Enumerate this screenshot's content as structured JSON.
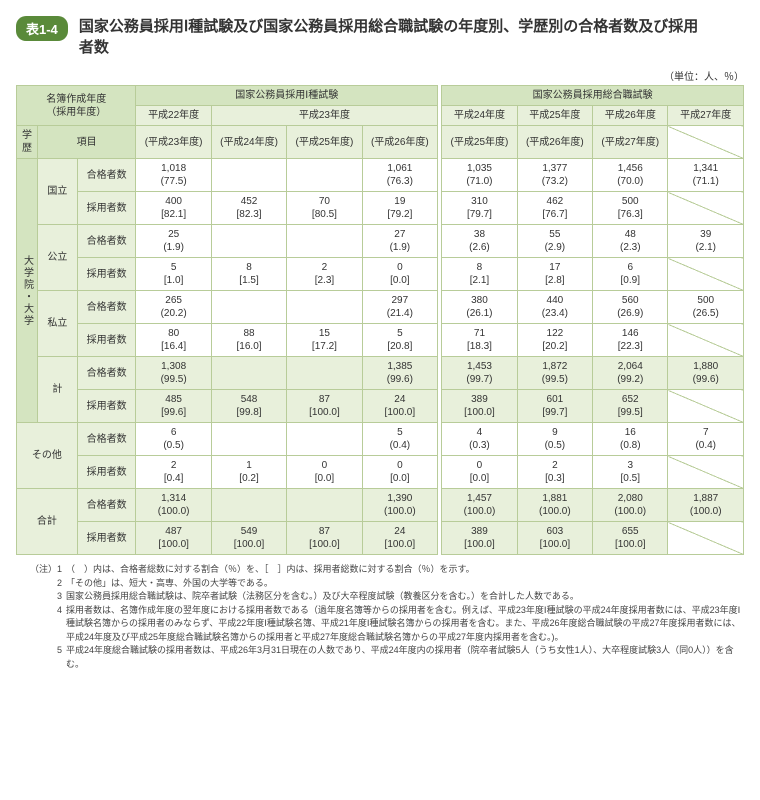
{
  "tag": "表1-4",
  "title": "国家公務員採用Ⅰ種試験及び国家公務員採用総合職試験の年度別、学歴別の合格者数及び採用者数",
  "unit": "（単位：人、％）",
  "colors": {
    "header": "#d4e4c0",
    "subheader": "#e8f0db",
    "border": "#b8cc99",
    "tag_bg": "#5a8a3a"
  },
  "colgroup": [
    "名簿作成年度\n（採用年度）",
    "国家公務員採用Ⅰ種試験",
    "国家公務員採用総合職試験"
  ],
  "years_top": [
    "平成22年度",
    "平成23年度",
    "平成24年度",
    "平成25年度",
    "平成26年度",
    "平成27年度"
  ],
  "years_sub": [
    "(平成23年度)",
    "(平成24年度)",
    "(平成25年度)",
    "(平成26年度)",
    "(平成25年度)",
    "(平成26年度)",
    "(平成27年度)"
  ],
  "row_side": [
    "学歴",
    "項目"
  ],
  "vlabel": "大学院・大学",
  "groups": [
    {
      "name": "国立",
      "rows": [
        {
          "label": "合格者数",
          "cells": [
            "1,018\n(77.5)",
            "",
            "",
            "1,061\n(76.3)",
            "1,035\n(71.0)",
            "1,377\n(73.2)",
            "1,456\n(70.0)",
            "1,341\n(71.1)"
          ]
        },
        {
          "label": "採用者数",
          "cells": [
            "400\n[82.1]",
            "452\n[82.3]",
            "70\n[80.5]",
            "19\n[79.2]",
            "310\n[79.7]",
            "462\n[76.7]",
            "500\n[76.3]",
            ""
          ],
          "slash": [
            7
          ]
        }
      ]
    },
    {
      "name": "公立",
      "rows": [
        {
          "label": "合格者数",
          "cells": [
            "25\n(1.9)",
            "",
            "",
            "27\n(1.9)",
            "38\n(2.6)",
            "55\n(2.9)",
            "48\n(2.3)",
            "39\n(2.1)"
          ]
        },
        {
          "label": "採用者数",
          "cells": [
            "5\n[1.0]",
            "8\n[1.5]",
            "2\n[2.3]",
            "0\n[0.0]",
            "8\n[2.1]",
            "17\n[2.8]",
            "6\n[0.9]",
            ""
          ],
          "slash": [
            7
          ]
        }
      ]
    },
    {
      "name": "私立",
      "rows": [
        {
          "label": "合格者数",
          "cells": [
            "265\n(20.2)",
            "",
            "",
            "297\n(21.4)",
            "380\n(26.1)",
            "440\n(23.4)",
            "560\n(26.9)",
            "500\n(26.5)"
          ]
        },
        {
          "label": "採用者数",
          "cells": [
            "80\n[16.4]",
            "88\n[16.0]",
            "15\n[17.2]",
            "5\n[20.8]",
            "71\n[18.3]",
            "122\n[20.2]",
            "146\n[22.3]",
            ""
          ],
          "slash": [
            7
          ]
        }
      ]
    },
    {
      "name": "計",
      "sum": true,
      "rows": [
        {
          "label": "合格者数",
          "cells": [
            "1,308\n(99.5)",
            "",
            "",
            "1,385\n(99.6)",
            "1,453\n(99.7)",
            "1,872\n(99.5)",
            "2,064\n(99.2)",
            "1,880\n(99.6)"
          ]
        },
        {
          "label": "採用者数",
          "cells": [
            "485\n[99.6]",
            "548\n[99.8]",
            "87\n[100.0]",
            "24\n[100.0]",
            "389\n[100.0]",
            "601\n[99.7]",
            "652\n[99.5]",
            ""
          ],
          "slash": [
            7
          ]
        }
      ]
    }
  ],
  "other": {
    "name": "その他",
    "rows": [
      {
        "label": "合格者数",
        "cells": [
          "6\n(0.5)",
          "",
          "",
          "5\n(0.4)",
          "4\n(0.3)",
          "9\n(0.5)",
          "16\n(0.8)",
          "7\n(0.4)"
        ]
      },
      {
        "label": "採用者数",
        "cells": [
          "2\n[0.4]",
          "1\n[0.2]",
          "0\n[0.0]",
          "0\n[0.0]",
          "0\n[0.0]",
          "2\n[0.3]",
          "3\n[0.5]",
          ""
        ],
        "slash": [
          7
        ]
      }
    ]
  },
  "total": {
    "name": "合計",
    "rows": [
      {
        "label": "合格者数",
        "cells": [
          "1,314\n(100.0)",
          "",
          "",
          "1,390\n(100.0)",
          "1,457\n(100.0)",
          "1,881\n(100.0)",
          "2,080\n(100.0)",
          "1,887\n(100.0)"
        ]
      },
      {
        "label": "採用者数",
        "cells": [
          "487\n[100.0]",
          "549\n[100.0]",
          "87\n[100.0]",
          "24\n[100.0]",
          "389\n[100.0]",
          "603\n[100.0]",
          "655\n[100.0]",
          ""
        ],
        "slash": [
          7
        ]
      }
    ]
  },
  "notes": [
    {
      "n": "（注）1",
      "t": "（　）内は、合格者総数に対する割合（％）を、［　］内は、採用者総数に対する割合（％）を示す。"
    },
    {
      "n": "2",
      "t": "「その他」は、短大・高専、外国の大学等である。"
    },
    {
      "n": "3",
      "t": "国家公務員採用総合職試験は、院卒者試験（法務区分を含む。）及び大卒程度試験（教養区分を含む。）を合計した人数である。"
    },
    {
      "n": "4",
      "t": "採用者数は、名簿作成年度の翌年度における採用者数である（過年度名簿等からの採用者を含む。例えば、平成23年度Ⅰ種試験の平成24年度採用者数には、平成23年度Ⅰ種試験名簿からの採用者のみならず、平成22年度Ⅰ種試験名簿、平成21年度Ⅰ種試験名簿からの採用者を含む。また、平成26年度総合職試験の平成27年度採用者数には、平成24年度及び平成25年度総合職試験名簿からの採用者と平成27年度総合職試験名簿からの平成27年度内採用者を含む。)。"
    },
    {
      "n": "5",
      "t": "平成24年度総合職試験の採用者数は、平成26年3月31日現在の人数であり、平成24年度内の採用者（院卒者試験5人（うち女性1人）、大卒程度試験3人（同0人））を含む。"
    }
  ]
}
